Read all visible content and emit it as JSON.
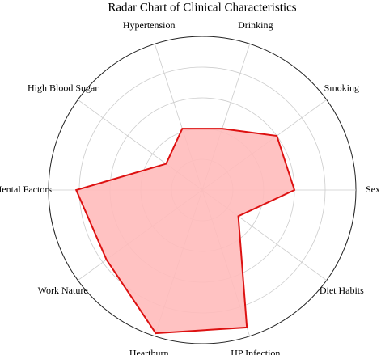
{
  "chart_data": {
    "type": "radar",
    "title": "Radar Chart of Clinical Characteristics",
    "categories": [
      "Sex",
      "Smoking",
      "Drinking",
      "Hypertension",
      "High Blood Sugar",
      "Mental Factors",
      "Work Nature",
      "Heartburn",
      "HP Infection",
      "Diet Habits"
    ],
    "values": [
      0.6,
      0.6,
      0.42,
      0.42,
      0.29,
      0.82,
      0.77,
      0.98,
      0.94,
      0.29
    ],
    "color": "#dd1111",
    "fill": "#ffbbbb",
    "rlim": [
      0,
      1
    ],
    "rticks": [
      0.2,
      0.4,
      0.6,
      0.8,
      1.0
    ],
    "grid": true
  }
}
